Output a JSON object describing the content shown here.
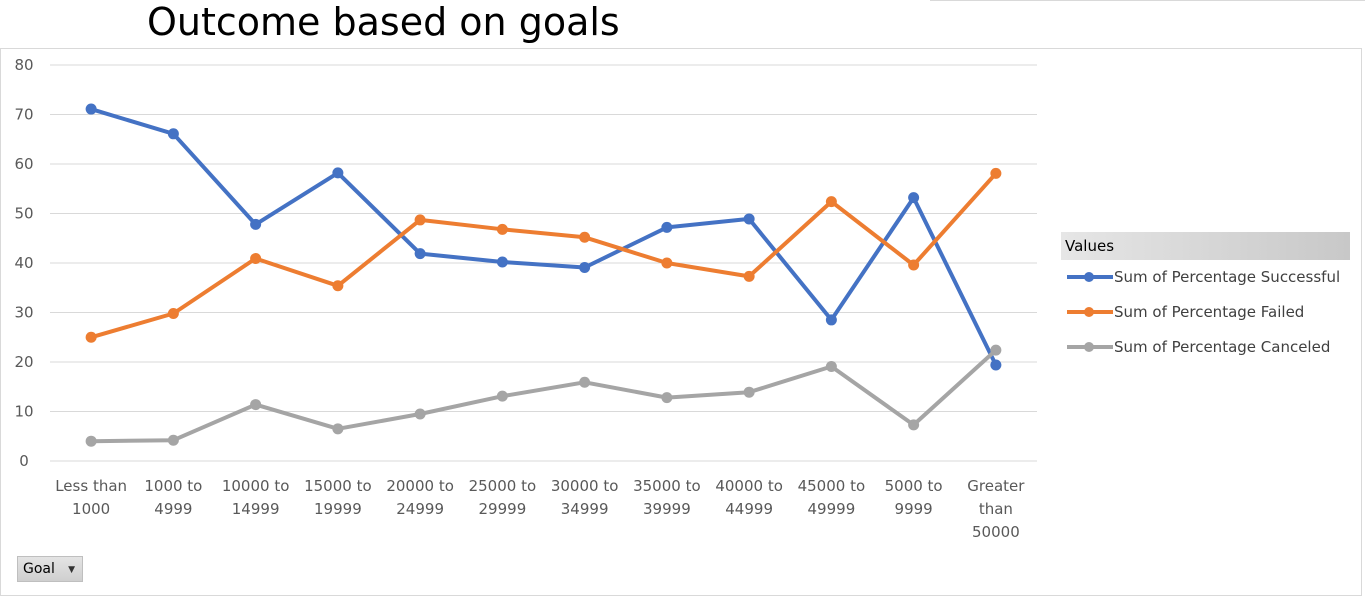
{
  "chart_data": {
    "type": "line",
    "title": "Outcome based on goals",
    "categories": [
      "Less than 1000",
      "1000 to 4999",
      "10000 to 14999",
      "15000 to 19999",
      "20000 to 24999",
      "25000 to 29999",
      "30000 to 34999",
      "35000 to 39999",
      "40000 to 44999",
      "45000 to 49999",
      "5000 to 9999",
      "Greater than 50000"
    ],
    "y_ticks": [
      "0",
      "10",
      "20",
      "30",
      "40",
      "50",
      "60",
      "70",
      "80"
    ],
    "ylim": [
      0,
      80
    ],
    "grid": true,
    "legend_position": "right",
    "legend_title": "Values",
    "series": [
      {
        "name": "Sum of Percentage Successful",
        "color": "#4472c4",
        "values": [
          71.1,
          66.1,
          47.8,
          58.2,
          41.9,
          40.2,
          39.1,
          47.2,
          48.9,
          28.5,
          53.2,
          19.4
        ]
      },
      {
        "name": "Sum of Percentage Failed",
        "color": "#ed7d31",
        "values": [
          25.0,
          29.8,
          40.9,
          35.4,
          48.7,
          46.8,
          45.2,
          40.0,
          37.3,
          52.4,
          39.6,
          58.1
        ]
      },
      {
        "name": "Sum of Percentage Canceled",
        "color": "#a5a5a5",
        "values": [
          4.0,
          4.2,
          11.4,
          6.5,
          9.5,
          13.1,
          15.9,
          12.8,
          13.9,
          19.1,
          7.3,
          22.4
        ]
      }
    ]
  },
  "filter_button": {
    "label": "Goal",
    "icon": "dropdown-arrow-icon"
  }
}
